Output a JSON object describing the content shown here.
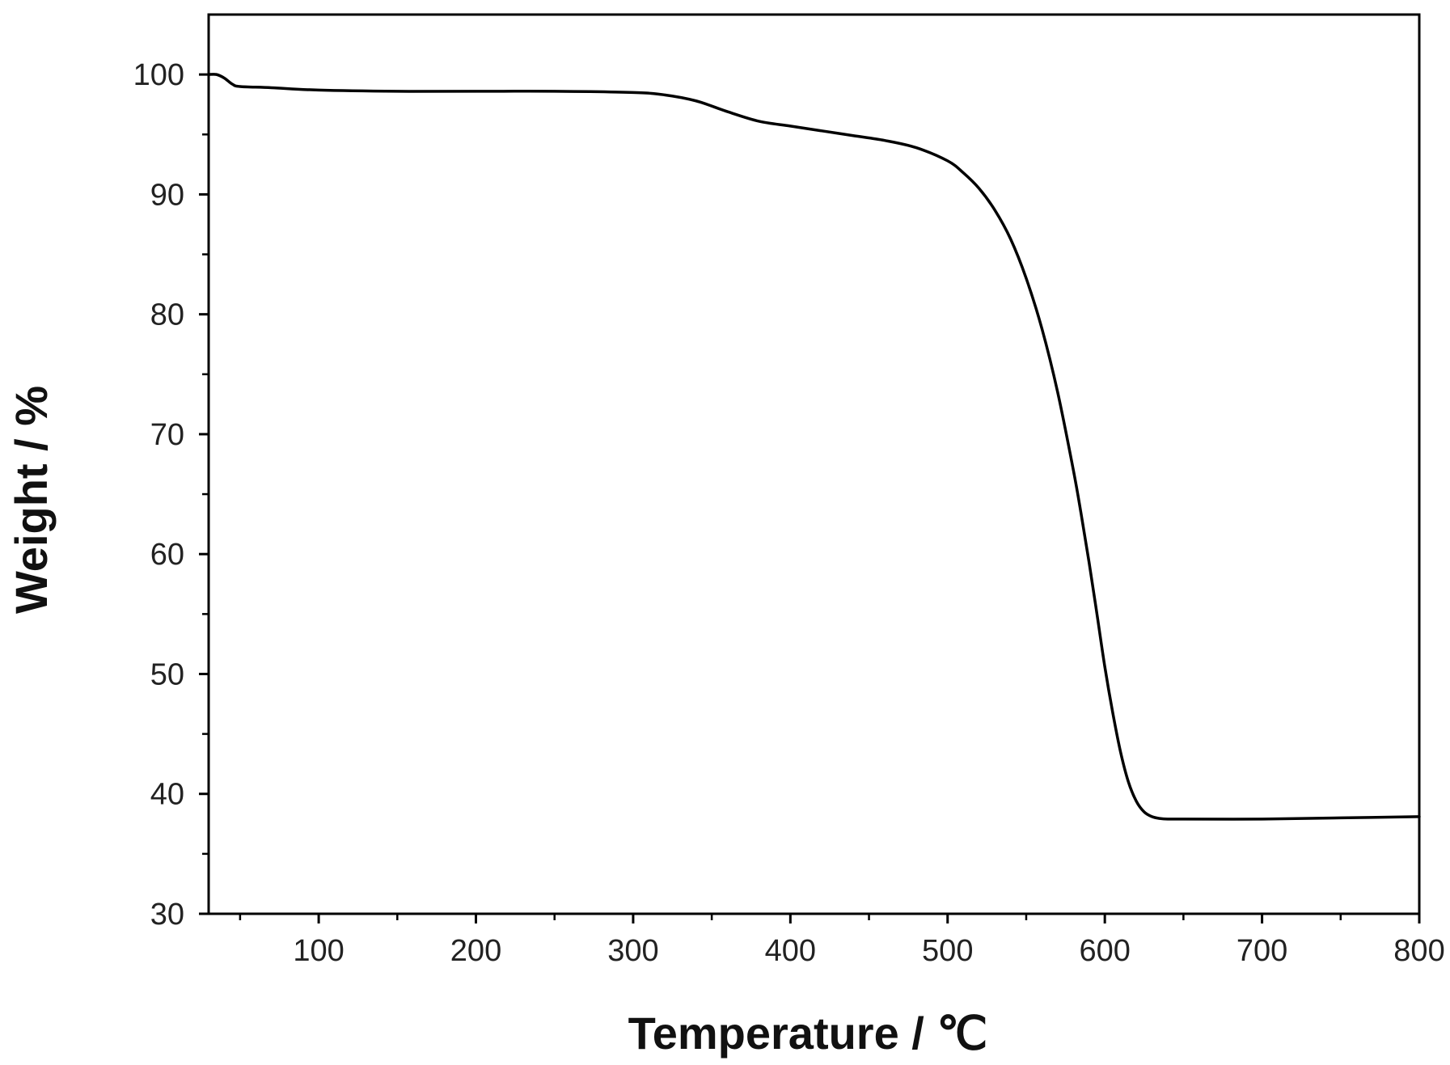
{
  "chart_data": {
    "type": "line",
    "title": "",
    "xlabel": "Temperature / ℃",
    "ylabel": "Weight / %",
    "xlim": [
      30,
      800
    ],
    "ylim": [
      30,
      105
    ],
    "x_ticks": [
      100,
      200,
      300,
      400,
      500,
      600,
      700,
      800
    ],
    "x_minor_ticks": [
      50,
      150,
      250,
      350,
      450,
      550,
      650,
      750
    ],
    "y_ticks": [
      30,
      40,
      50,
      60,
      70,
      80,
      90,
      100
    ],
    "y_minor_ticks": [
      35,
      45,
      55,
      65,
      75,
      85,
      95
    ],
    "grid": false,
    "legend": "none",
    "line_color": "#000000",
    "series": [
      {
        "x": [
          30,
          35,
          40,
          45,
          50,
          70,
          100,
          150,
          200,
          250,
          300,
          320,
          340,
          360,
          380,
          400,
          420,
          440,
          460,
          480,
          500,
          510,
          520,
          530,
          540,
          550,
          560,
          570,
          580,
          585,
          590,
          595,
          600,
          605,
          610,
          615,
          620,
          625,
          630,
          635,
          640,
          650,
          700,
          750,
          800
        ],
        "y": [
          100,
          100,
          99.7,
          99.2,
          99.0,
          98.9,
          98.7,
          98.6,
          98.6,
          98.6,
          98.5,
          98.3,
          97.8,
          96.9,
          96.1,
          95.7,
          95.3,
          94.9,
          94.5,
          93.9,
          92.8,
          91.8,
          90.5,
          88.7,
          86.3,
          83.0,
          78.8,
          73.5,
          67.0,
          63.3,
          59.3,
          55.0,
          50.6,
          46.8,
          43.5,
          41.0,
          39.4,
          38.5,
          38.1,
          37.95,
          37.9,
          37.9,
          37.9,
          38.0,
          38.1
        ]
      }
    ]
  }
}
